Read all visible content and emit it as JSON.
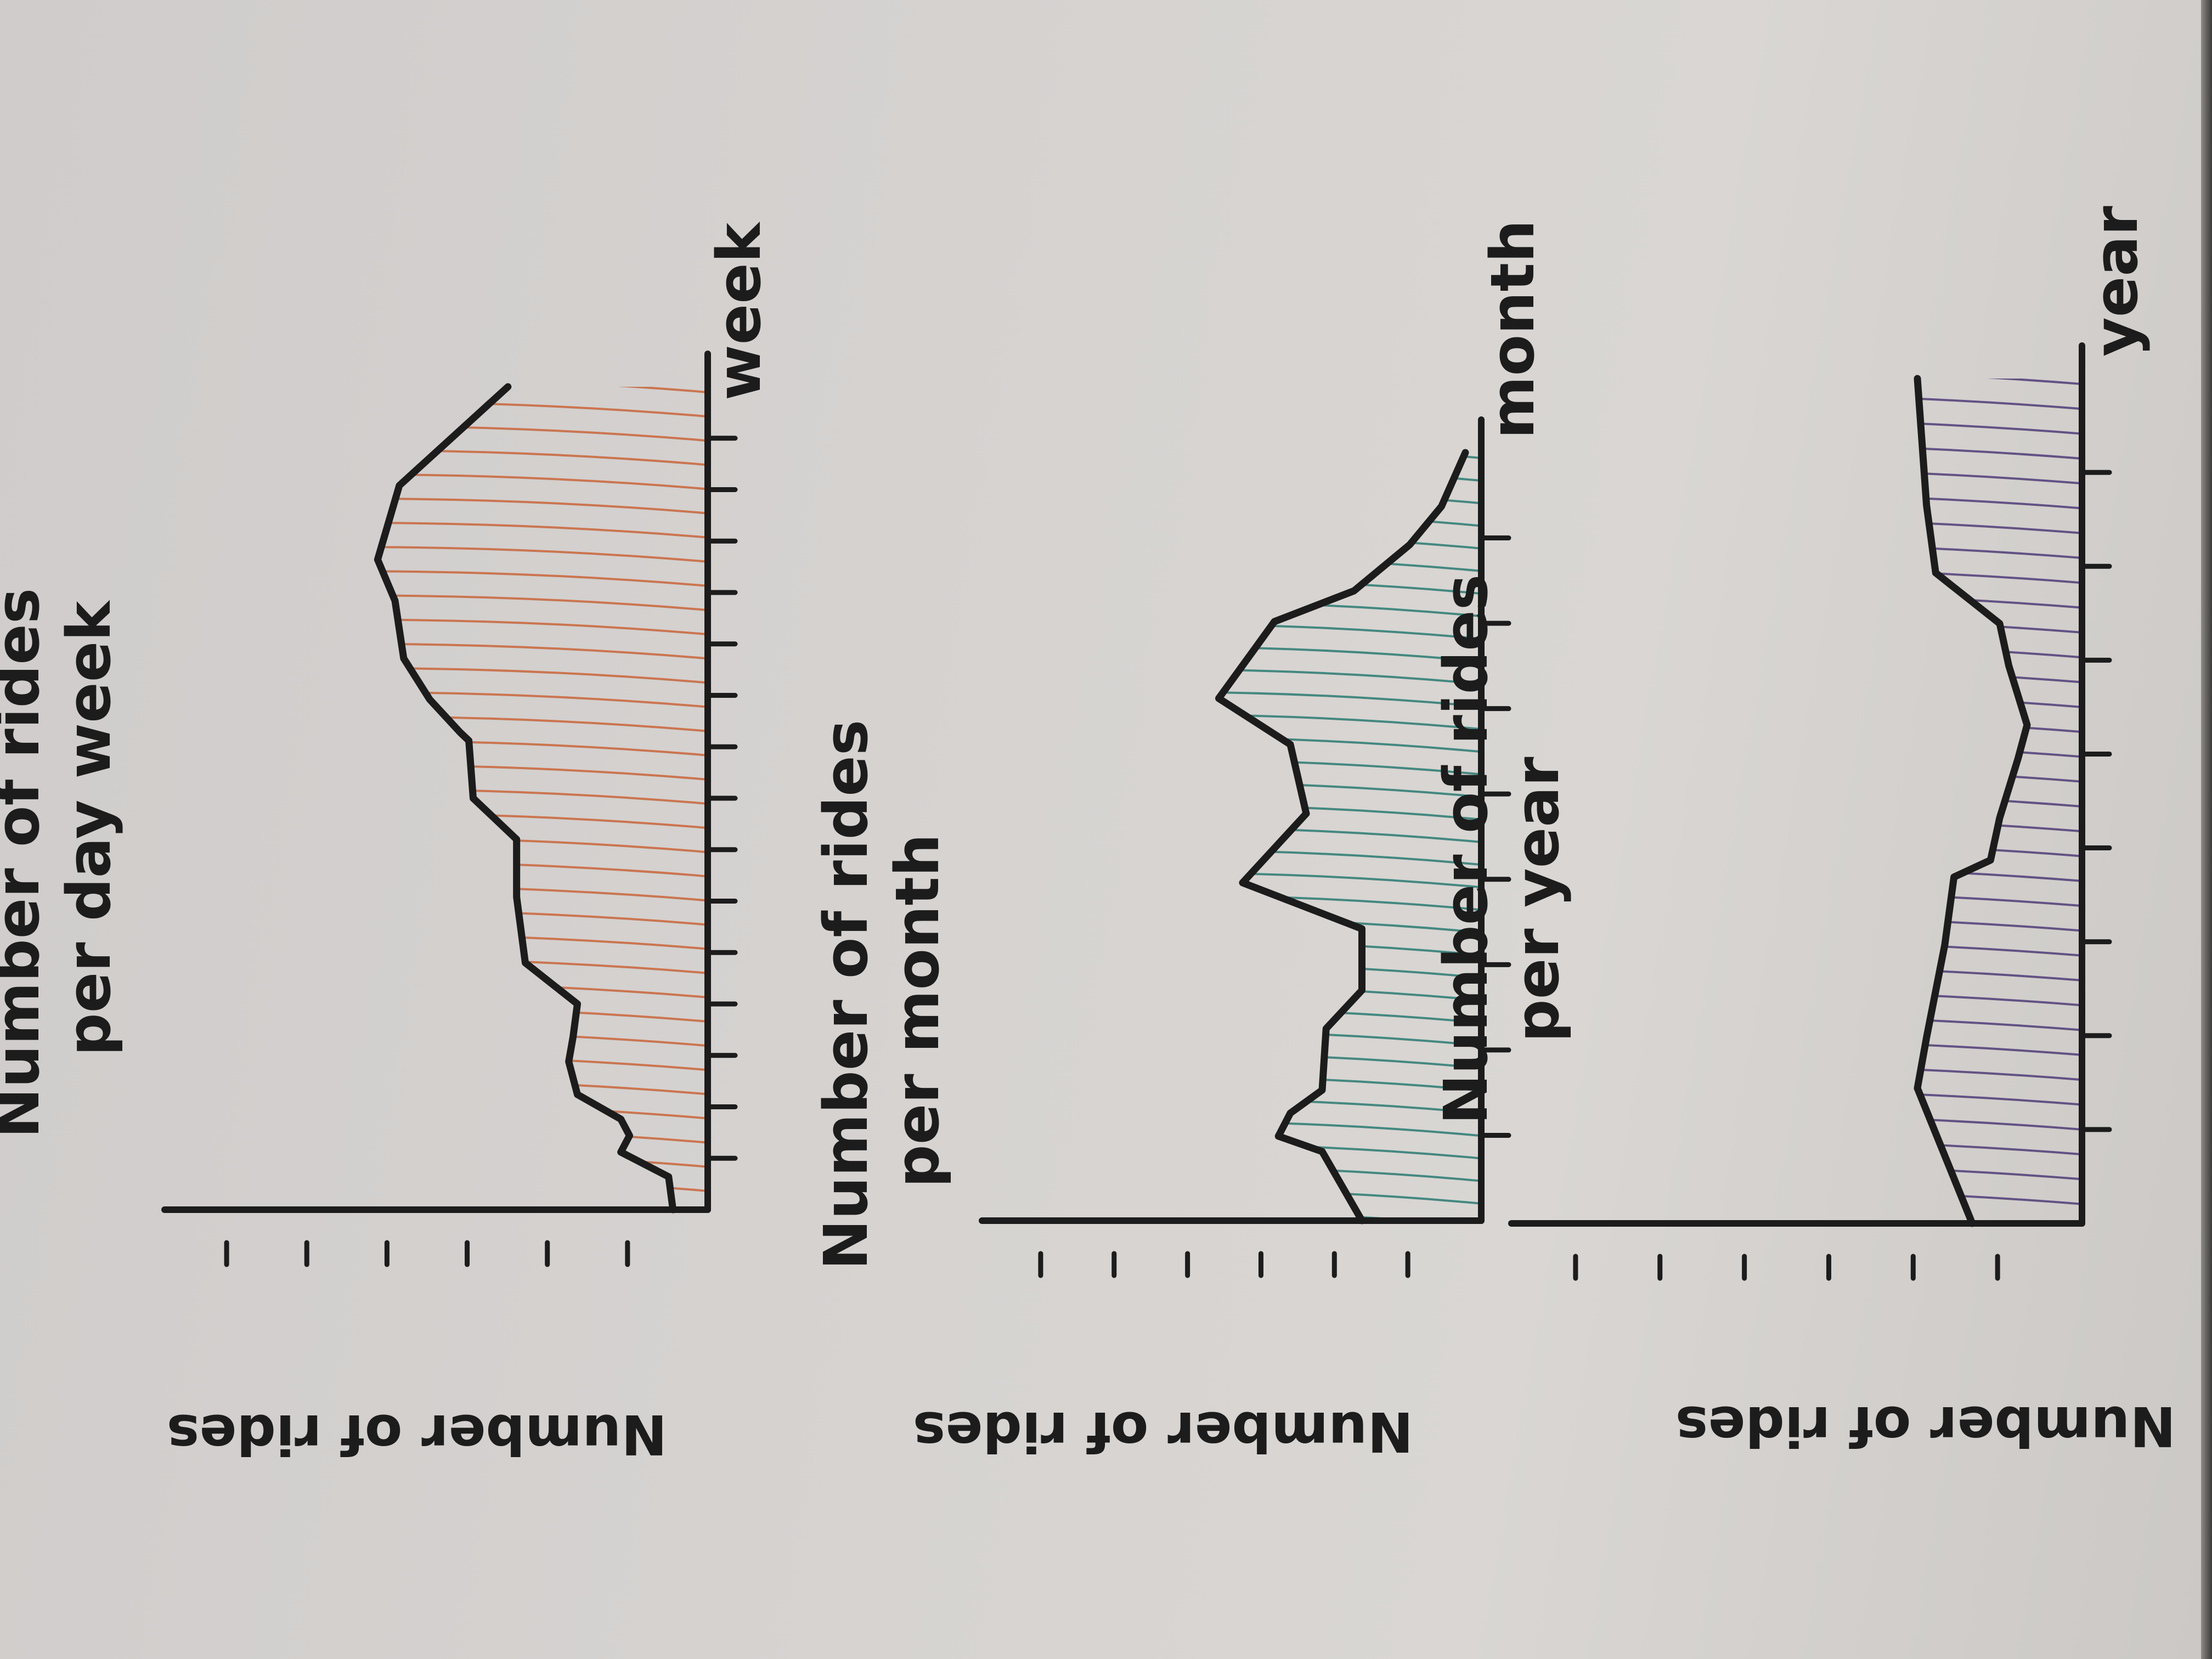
{
  "colors": {
    "ink": "#1c1c1c",
    "week": "#c9653a",
    "month": "#2a7a72",
    "year": "#4f3c78"
  },
  "chart_data": [
    {
      "type": "area",
      "title": "Number of rides per day week",
      "xlabel": "week",
      "ylabel": "Number of rides",
      "x_ticks": 15,
      "y_ticks": 6,
      "xlim": [
        0,
        100
      ],
      "ylim": [
        0,
        6
      ],
      "x": [
        0,
        4,
        7,
        9,
        11,
        14,
        18,
        21,
        25,
        30,
        38,
        45,
        50,
        57,
        58,
        62,
        67,
        74,
        79,
        88,
        100
      ],
      "y": [
        0.4,
        0.45,
        1.0,
        0.9,
        1.0,
        1.5,
        1.6,
        1.55,
        1.5,
        2.1,
        2.2,
        2.2,
        2.7,
        2.75,
        2.85,
        3.2,
        3.5,
        3.6,
        3.8,
        3.55,
        2.3
      ],
      "fill_color": "orange"
    },
    {
      "type": "area",
      "title": "Number of rides per month",
      "xlabel": "month",
      "ylabel": "Number of rides",
      "x_ticks": 8,
      "y_ticks": 6,
      "xlim": [
        0,
        100
      ],
      "ylim": [
        0,
        6
      ],
      "x": [
        0,
        9,
        11,
        14,
        17,
        25,
        30,
        38,
        44,
        53,
        62,
        68,
        78,
        82,
        88,
        93,
        100
      ],
      "y": [
        1.5,
        2.0,
        2.55,
        2.4,
        2.0,
        1.95,
        1.5,
        1.5,
        3.0,
        2.2,
        2.4,
        3.3,
        2.6,
        1.6,
        0.9,
        0.5,
        0.2
      ],
      "fill_color": "teal"
    },
    {
      "type": "area",
      "title": "Number of rides per year",
      "xlabel": "year",
      "ylabel": "Number of rides",
      "x_ticks": 8,
      "y_ticks": 6,
      "xlim": [
        0,
        100
      ],
      "ylim": [
        0,
        6
      ],
      "x": [
        0,
        16,
        22,
        33,
        41,
        43,
        48,
        55,
        59,
        66,
        71,
        77,
        85,
        100
      ],
      "y": [
        1.2,
        1.8,
        1.7,
        1.5,
        1.4,
        1.0,
        0.9,
        0.7,
        0.6,
        0.8,
        0.9,
        1.6,
        1.7,
        1.8
      ],
      "fill_color": "purple"
    }
  ]
}
